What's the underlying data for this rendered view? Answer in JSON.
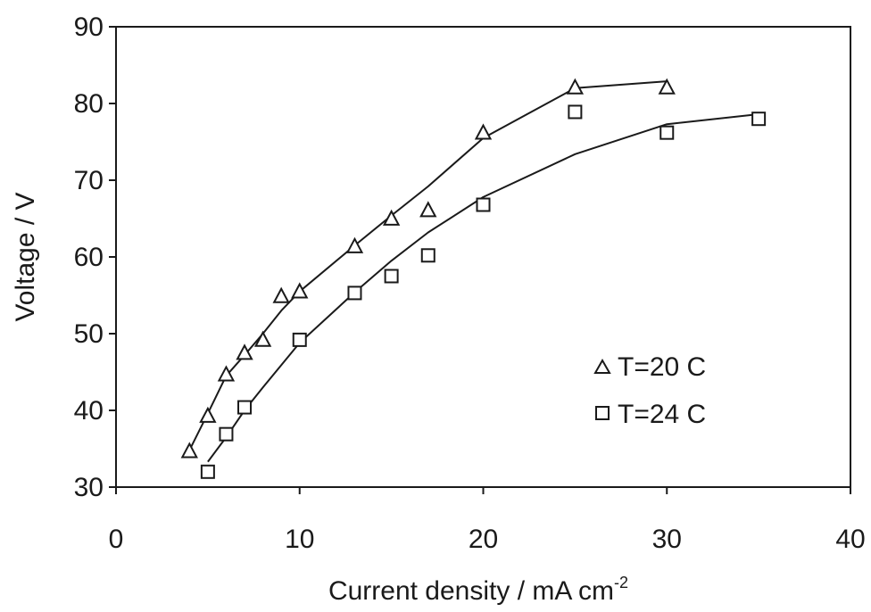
{
  "chart_data": {
    "type": "scatter",
    "xlabel": "Current density / mA cm",
    "xlabel_sup": "-2",
    "ylabel": "Voltage / V",
    "xlim": [
      0,
      40
    ],
    "ylim": [
      30,
      90
    ],
    "xticks": [
      0,
      10,
      20,
      30,
      40
    ],
    "yticks": [
      30,
      40,
      50,
      60,
      70,
      80,
      90
    ],
    "grid": false,
    "legend_position": "right",
    "series": [
      {
        "name": "T=20 C",
        "marker": "triangle",
        "x": [
          4,
          5,
          6,
          7,
          8,
          9,
          10,
          13,
          15,
          17,
          20,
          25,
          30
        ],
        "y": [
          34.6,
          39.2,
          44.6,
          47.4,
          49.1,
          54.8,
          55.4,
          61.3,
          64.9,
          66.0,
          76.1,
          82.0,
          82.0
        ],
        "fit_x": [
          4,
          5,
          6,
          7,
          8,
          9,
          10,
          13,
          15,
          17,
          20,
          25,
          30
        ],
        "fit_y": [
          34.8,
          39.6,
          44.5,
          47.2,
          50.0,
          53.0,
          55.5,
          61.5,
          65.4,
          69.2,
          75.5,
          82.0,
          82.9
        ]
      },
      {
        "name": "T=24 C",
        "marker": "square",
        "x": [
          5,
          6,
          7,
          10,
          13,
          15,
          17,
          20,
          25,
          30,
          35
        ],
        "y": [
          32.0,
          36.9,
          40.4,
          49.2,
          55.3,
          57.5,
          60.2,
          66.8,
          78.9,
          76.2,
          78.0
        ],
        "fit_x": [
          5,
          6,
          7,
          8,
          10,
          13,
          15,
          17,
          20,
          25,
          30,
          35
        ],
        "fit_y": [
          33.3,
          36.5,
          40.0,
          43.0,
          48.8,
          55.4,
          59.5,
          63.2,
          67.8,
          73.4,
          77.3,
          78.6
        ]
      }
    ]
  }
}
